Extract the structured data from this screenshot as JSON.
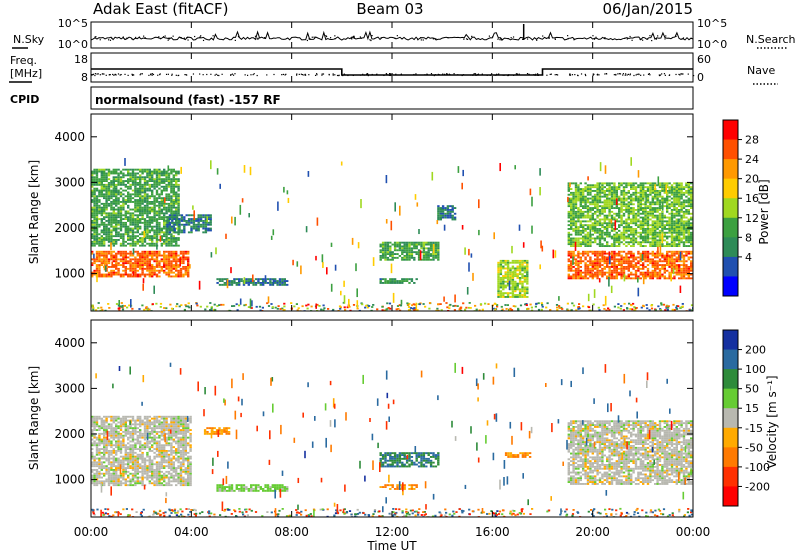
{
  "header": {
    "station": "Adak East (fitACF)",
    "beam": "Beam 03",
    "date": "06/Jan/2015"
  },
  "noise_panel": {
    "left_label": "N.Sky",
    "right_label": "N.Search",
    "left_ticks": [
      "10^5",
      "10^0"
    ],
    "right_ticks": [
      "10^5",
      "10^0"
    ]
  },
  "freq_panel": {
    "left_label_1": "Freq.",
    "left_label_2": "[MHz]",
    "left_ticks": [
      "18",
      "8"
    ],
    "right_ticks": [
      "60",
      "0"
    ],
    "right_label": "Nave",
    "cpid_label": "CPID",
    "cpid_text": "normalsound (fast) -157 RF"
  },
  "axes": {
    "ylabel": "Slant Range [km]",
    "yticks": [
      "4000",
      "3000",
      "2000",
      "1000"
    ],
    "xticks": [
      "00:00",
      "04:00",
      "08:00",
      "12:00",
      "16:00",
      "20:00",
      "00:00"
    ],
    "xlabel": "Time UT"
  },
  "power_colorbar": {
    "label": "Power [dB]",
    "ticks": [
      "28",
      "24",
      "20",
      "16",
      "12",
      "8",
      "4"
    ],
    "colors": [
      "#ff0000",
      "#ff5000",
      "#ff9900",
      "#ffcc00",
      "#a0d820",
      "#3ca040",
      "#2e8b57",
      "#2050b0",
      "#0000ff"
    ]
  },
  "velocity_colorbar": {
    "label": "Velocity [m s⁻¹]",
    "ticks": [
      "200",
      "100",
      "50",
      "15",
      "-15",
      "-50",
      "-100",
      "-200"
    ],
    "colors": [
      "#1530a0",
      "#2a6aa0",
      "#2e8b3a",
      "#66cc33",
      "#b8b8b0",
      "#ffaa00",
      "#ff7a00",
      "#ff3000",
      "#ff0000"
    ]
  },
  "chart_data": {
    "type": "heatmap",
    "x_range_hours": [
      0,
      24
    ],
    "y_range_km": [
      180,
      4500
    ],
    "frequency_mhz": [
      {
        "start": "00:00",
        "end": "10:00",
        "value": 13.5
      },
      {
        "start": "10:00",
        "end": "18:00",
        "value": 10.5
      },
      {
        "start": "18:00",
        "end": "00:00",
        "value": 13.5
      }
    ],
    "power_regions": [
      {
        "t0": 0.0,
        "t1": 3.9,
        "r0": 950,
        "r1": 1500,
        "power_db": 26
      },
      {
        "t0": 0.0,
        "t1": 3.5,
        "r0": 1600,
        "r1": 3300,
        "power_db": 12
      },
      {
        "t0": 3.0,
        "t1": 4.8,
        "r0": 1900,
        "r1": 2300,
        "power_db": 8
      },
      {
        "t0": 5.0,
        "t1": 7.8,
        "r0": 750,
        "r1": 900,
        "power_db": 8
      },
      {
        "t0": 11.5,
        "t1": 13.8,
        "r0": 1300,
        "r1": 1700,
        "power_db": 12
      },
      {
        "t0": 11.5,
        "t1": 13.0,
        "r0": 780,
        "r1": 900,
        "power_db": 10
      },
      {
        "t0": 13.8,
        "t1": 14.5,
        "r0": 2200,
        "r1": 2500,
        "power_db": 8
      },
      {
        "t0": 16.2,
        "t1": 17.4,
        "r0": 500,
        "r1": 1300,
        "power_db": 16
      },
      {
        "t0": 19.0,
        "t1": 24.0,
        "r0": 900,
        "r1": 1500,
        "power_db": 26
      },
      {
        "t0": 19.0,
        "t1": 24.0,
        "r0": 1600,
        "r1": 3000,
        "power_db": 14
      }
    ],
    "velocity_regions": [
      {
        "t0": 0.0,
        "t1": 4.0,
        "r0": 900,
        "r1": 2400,
        "velocity_ms": 0
      },
      {
        "t0": 4.5,
        "t1": 5.5,
        "r0": 2000,
        "r1": 2150,
        "velocity_ms": -50
      },
      {
        "t0": 5.0,
        "t1": 7.8,
        "r0": 750,
        "r1": 900,
        "velocity_ms": 30
      },
      {
        "t0": 11.5,
        "t1": 13.8,
        "r0": 1300,
        "r1": 1600,
        "velocity_ms": 100
      },
      {
        "t0": 11.5,
        "t1": 13.0,
        "r0": 780,
        "r1": 900,
        "velocity_ms": -50
      },
      {
        "t0": 16.5,
        "t1": 17.5,
        "r0": 1500,
        "r1": 1600,
        "velocity_ms": -50
      },
      {
        "t0": 19.0,
        "t1": 24.0,
        "r0": 900,
        "r1": 2300,
        "velocity_ms": 0
      }
    ]
  }
}
